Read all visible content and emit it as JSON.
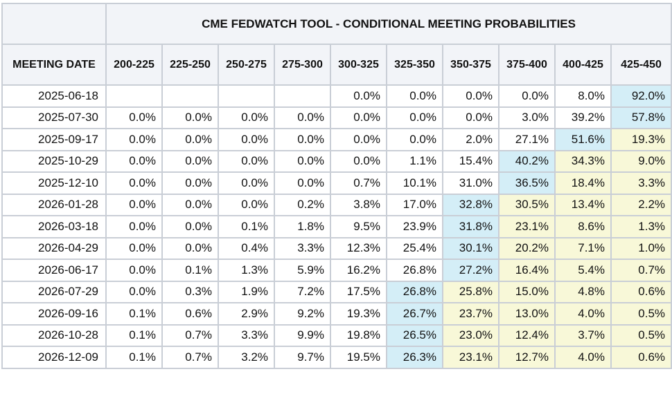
{
  "title": "CME FEDWATCH TOOL - CONDITIONAL MEETING PROBABILITIES",
  "first_col_header": "MEETING DATE",
  "colors": {
    "max_cell": "#d4eef7",
    "above_max_cell": "#f8f8d8",
    "normal_cell": "#ffffff"
  },
  "columns": [
    "200-225",
    "225-250",
    "250-275",
    "275-300",
    "300-325",
    "325-350",
    "350-375",
    "375-400",
    "400-425",
    "425-450"
  ],
  "rows": [
    {
      "date": "2025-06-18",
      "values": [
        "",
        "",
        "",
        "",
        "0.0%",
        "0.0%",
        "0.0%",
        "0.0%",
        "8.0%",
        "92.0%"
      ],
      "max_index": 9
    },
    {
      "date": "2025-07-30",
      "values": [
        "0.0%",
        "0.0%",
        "0.0%",
        "0.0%",
        "0.0%",
        "0.0%",
        "0.0%",
        "3.0%",
        "39.2%",
        "57.8%"
      ],
      "max_index": 9
    },
    {
      "date": "2025-09-17",
      "values": [
        "0.0%",
        "0.0%",
        "0.0%",
        "0.0%",
        "0.0%",
        "0.0%",
        "2.0%",
        "27.1%",
        "51.6%",
        "19.3%"
      ],
      "max_index": 8
    },
    {
      "date": "2025-10-29",
      "values": [
        "0.0%",
        "0.0%",
        "0.0%",
        "0.0%",
        "0.0%",
        "1.1%",
        "15.4%",
        "40.2%",
        "34.3%",
        "9.0%"
      ],
      "max_index": 7
    },
    {
      "date": "2025-12-10",
      "values": [
        "0.0%",
        "0.0%",
        "0.0%",
        "0.0%",
        "0.7%",
        "10.1%",
        "31.0%",
        "36.5%",
        "18.4%",
        "3.3%"
      ],
      "max_index": 7
    },
    {
      "date": "2026-01-28",
      "values": [
        "0.0%",
        "0.0%",
        "0.0%",
        "0.2%",
        "3.8%",
        "17.0%",
        "32.8%",
        "30.5%",
        "13.4%",
        "2.2%"
      ],
      "max_index": 6
    },
    {
      "date": "2026-03-18",
      "values": [
        "0.0%",
        "0.0%",
        "0.1%",
        "1.8%",
        "9.5%",
        "23.9%",
        "31.8%",
        "23.1%",
        "8.6%",
        "1.3%"
      ],
      "max_index": 6
    },
    {
      "date": "2026-04-29",
      "values": [
        "0.0%",
        "0.0%",
        "0.4%",
        "3.3%",
        "12.3%",
        "25.4%",
        "30.1%",
        "20.2%",
        "7.1%",
        "1.0%"
      ],
      "max_index": 6
    },
    {
      "date": "2026-06-17",
      "values": [
        "0.0%",
        "0.1%",
        "1.3%",
        "5.9%",
        "16.2%",
        "26.8%",
        "27.2%",
        "16.4%",
        "5.4%",
        "0.7%"
      ],
      "max_index": 6
    },
    {
      "date": "2026-07-29",
      "values": [
        "0.0%",
        "0.3%",
        "1.9%",
        "7.2%",
        "17.5%",
        "26.8%",
        "25.8%",
        "15.0%",
        "4.8%",
        "0.6%"
      ],
      "max_index": 5
    },
    {
      "date": "2026-09-16",
      "values": [
        "0.1%",
        "0.6%",
        "2.9%",
        "9.2%",
        "19.3%",
        "26.7%",
        "23.7%",
        "13.0%",
        "4.0%",
        "0.5%"
      ],
      "max_index": 5
    },
    {
      "date": "2026-10-28",
      "values": [
        "0.1%",
        "0.7%",
        "3.3%",
        "9.9%",
        "19.8%",
        "26.5%",
        "23.0%",
        "12.4%",
        "3.7%",
        "0.5%"
      ],
      "max_index": 5
    },
    {
      "date": "2026-12-09",
      "values": [
        "0.1%",
        "0.7%",
        "3.2%",
        "9.7%",
        "19.5%",
        "26.3%",
        "23.1%",
        "12.7%",
        "4.0%",
        "0.6%"
      ],
      "max_index": 5
    }
  ]
}
